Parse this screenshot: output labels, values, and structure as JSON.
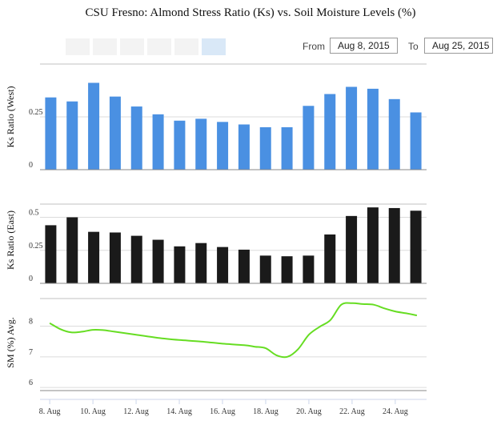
{
  "title": "CSU Fresno: Almond Stress Ratio (Ks) vs. Soil Moisture Levels (%)",
  "range_selector": {
    "from_label": "From",
    "to_label": "To",
    "from_value": "Aug 8, 2015",
    "to_value": "Aug 25, 2015"
  },
  "colors": {
    "west": "#4a90e2",
    "east": "#1a1a1a",
    "moisture": "#66dd22",
    "axis": "#c0c0c0"
  },
  "chart_data": [
    {
      "type": "bar",
      "name": "west",
      "ylabel": "Ks Ratio (West)",
      "ylim": [
        0,
        0.5
      ],
      "yticks": [
        {
          "v": 0,
          "label": "0"
        },
        {
          "v": 0.25,
          "label": "0.25"
        }
      ],
      "categories": [
        "Aug 8",
        "Aug 9",
        "Aug 10",
        "Aug 11",
        "Aug 12",
        "Aug 13",
        "Aug 14",
        "Aug 15",
        "Aug 16",
        "Aug 17",
        "Aug 18",
        "Aug 19",
        "Aug 20",
        "Aug 21",
        "Aug 22",
        "Aug 23",
        "Aug 24",
        "Aug 25"
      ],
      "values": [
        0.342,
        0.323,
        0.411,
        0.346,
        0.299,
        0.262,
        0.232,
        0.241,
        0.226,
        0.214,
        0.201,
        0.201,
        0.302,
        0.358,
        0.392,
        0.383,
        0.334,
        0.271
      ]
    },
    {
      "type": "bar",
      "name": "east",
      "ylabel": "Ks Ratio (East)",
      "ylim": [
        0,
        0.6
      ],
      "yticks": [
        {
          "v": 0,
          "label": "0"
        },
        {
          "v": 0.25,
          "label": "0.25"
        },
        {
          "v": 0.5,
          "label": "0.5"
        }
      ],
      "categories": [
        "Aug 8",
        "Aug 9",
        "Aug 10",
        "Aug 11",
        "Aug 12",
        "Aug 13",
        "Aug 14",
        "Aug 15",
        "Aug 16",
        "Aug 17",
        "Aug 18",
        "Aug 19",
        "Aug 20",
        "Aug 21",
        "Aug 22",
        "Aug 23",
        "Aug 24",
        "Aug 25"
      ],
      "values": [
        0.44,
        0.5,
        0.39,
        0.385,
        0.36,
        0.33,
        0.28,
        0.305,
        0.275,
        0.255,
        0.21,
        0.205,
        0.21,
        0.37,
        0.51,
        0.575,
        0.57,
        0.55
      ]
    },
    {
      "type": "line",
      "name": "moisture",
      "ylabel": "SM (%) Avg.",
      "ylim": [
        5.9,
        8.9
      ],
      "yticks": [
        {
          "v": 6,
          "label": "6"
        },
        {
          "v": 7,
          "label": "7"
        },
        {
          "v": 8,
          "label": "8"
        }
      ],
      "x": [
        8,
        8.5,
        9,
        9.5,
        10,
        10.5,
        11,
        12,
        13,
        14,
        15,
        16,
        17,
        17.5,
        18,
        18.5,
        19,
        19.5,
        20,
        20.5,
        21,
        21.5,
        22,
        22.5,
        23,
        23.5,
        24,
        24.5,
        25
      ],
      "values": [
        8.1,
        7.9,
        7.8,
        7.82,
        7.88,
        7.87,
        7.82,
        7.72,
        7.62,
        7.55,
        7.5,
        7.43,
        7.38,
        7.33,
        7.28,
        7.05,
        7.0,
        7.25,
        7.72,
        7.98,
        8.2,
        8.7,
        8.75,
        8.72,
        8.7,
        8.58,
        8.48,
        8.42,
        8.35
      ]
    }
  ],
  "x_axis": {
    "ticks": [
      {
        "day": 8,
        "label": "8. Aug"
      },
      {
        "day": 10,
        "label": "10. Aug"
      },
      {
        "day": 12,
        "label": "12. Aug"
      },
      {
        "day": 14,
        "label": "14. Aug"
      },
      {
        "day": 16,
        "label": "16. Aug"
      },
      {
        "day": 18,
        "label": "18. Aug"
      },
      {
        "day": 20,
        "label": "20. Aug"
      },
      {
        "day": 22,
        "label": "22. Aug"
      },
      {
        "day": 24,
        "label": "24. Aug"
      }
    ]
  }
}
